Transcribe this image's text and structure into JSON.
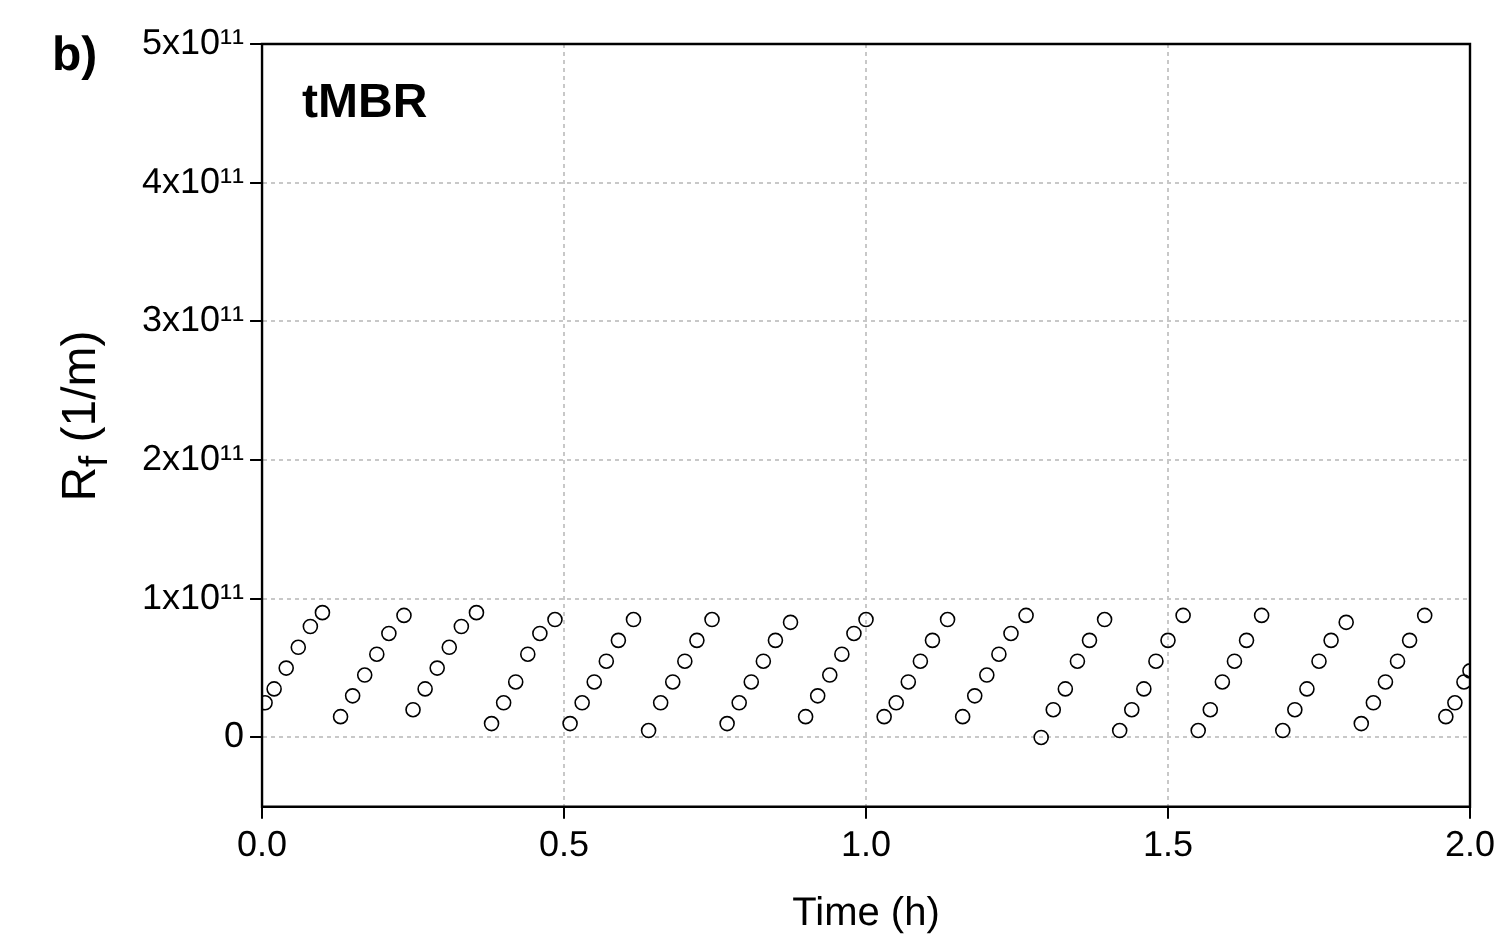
{
  "chart_data": {
    "type": "scatter",
    "xlabel": "Time (h)",
    "ylabel": "R$_{f}$ (1/m)",
    "annotations": [
      "b)",
      "tMBR"
    ],
    "xlim": [
      0,
      2
    ],
    "xticks": [
      {
        "value": 0,
        "label": "0.0"
      },
      {
        "value": 0.5,
        "label": "0.5"
      },
      {
        "value": 1,
        "label": "1.0"
      },
      {
        "value": 1.5,
        "label": "1.5"
      },
      {
        "value": 2,
        "label": "2.0"
      }
    ],
    "ylim": [
      -50000000000.0,
      500000000000.0
    ],
    "yticks": [
      0,
      {
        "value": 100000000000.0,
        "label": "1x10¹¹"
      },
      {
        "value": 200000000000.0,
        "label": "2x10¹¹"
      },
      {
        "value": 300000000000.0,
        "label": "3x10¹¹"
      },
      {
        "value": 400000000000.0,
        "label": "4x10¹¹"
      },
      {
        "value": 500000000000.0,
        "label": "5x10¹¹"
      }
    ],
    "grid": true,
    "marker": "circle",
    "series": [
      {
        "color": "#000000",
        "x": [
          0.005,
          0.02,
          0.04,
          0.06,
          0.08,
          0.1,
          0.13,
          0.15,
          0.17,
          0.19,
          0.21,
          0.235,
          0.25,
          0.27,
          0.29,
          0.31,
          0.33,
          0.355,
          0.38,
          0.4,
          0.42,
          0.44,
          0.46,
          0.485,
          0.51,
          0.53,
          0.55,
          0.57,
          0.59,
          0.615,
          0.64,
          0.66,
          0.68,
          0.7,
          0.72,
          0.745,
          0.77,
          0.79,
          0.81,
          0.83,
          0.85,
          0.875,
          0.9,
          0.92,
          0.94,
          0.96,
          0.98,
          1.0,
          1.03,
          1.05,
          1.07,
          1.09,
          1.11,
          1.135,
          1.16,
          1.18,
          1.2,
          1.22,
          1.24,
          1.265,
          1.29,
          1.31,
          1.33,
          1.35,
          1.37,
          1.395,
          1.42,
          1.44,
          1.46,
          1.48,
          1.5,
          1.525,
          1.55,
          1.57,
          1.59,
          1.61,
          1.63,
          1.655,
          1.69,
          1.71,
          1.73,
          1.75,
          1.77,
          1.795,
          1.82,
          1.84,
          1.86,
          1.88,
          1.9,
          1.925,
          1.96,
          1.975,
          1.99,
          2.0
        ],
        "values": [
          25000000000.0,
          35000000000.0,
          50000000000.0,
          65000000000.0,
          80000000000.0,
          90000000000.0,
          15000000000.0,
          30000000000.0,
          45000000000.0,
          60000000000.0,
          75000000000.0,
          88000000000.0,
          20000000000.0,
          35000000000.0,
          50000000000.0,
          65000000000.0,
          80000000000.0,
          90000000000.0,
          10000000000.0,
          25000000000.0,
          40000000000.0,
          60000000000.0,
          75000000000.0,
          85000000000.0,
          10000000000.0,
          25000000000.0,
          40000000000.0,
          55000000000.0,
          70000000000.0,
          85000000000.0,
          5000000000.0,
          25000000000.0,
          40000000000.0,
          55000000000.0,
          70000000000.0,
          85000000000.0,
          10000000000.0,
          25000000000.0,
          40000000000.0,
          55000000000.0,
          70000000000.0,
          83000000000.0,
          15000000000.0,
          30000000000.0,
          45000000000.0,
          60000000000.0,
          75000000000.0,
          85000000000.0,
          15000000000.0,
          25000000000.0,
          40000000000.0,
          55000000000.0,
          70000000000.0,
          85000000000.0,
          15000000000.0,
          30000000000.0,
          45000000000.0,
          60000000000.0,
          75000000000.0,
          88000000000.0,
          0,
          20000000000.0,
          35000000000.0,
          55000000000.0,
          70000000000.0,
          85000000000.0,
          5000000000.0,
          20000000000.0,
          35000000000.0,
          55000000000.0,
          70000000000.0,
          88000000000.0,
          5000000000.0,
          20000000000.0,
          40000000000.0,
          55000000000.0,
          70000000000.0,
          88000000000.0,
          5000000000.0,
          20000000000.0,
          35000000000.0,
          55000000000.0,
          70000000000.0,
          83000000000.0,
          10000000000.0,
          25000000000.0,
          40000000000.0,
          55000000000.0,
          70000000000.0,
          88000000000.0,
          15000000000.0,
          25000000000.0,
          40000000000.0,
          48000000000.0
        ]
      }
    ]
  }
}
